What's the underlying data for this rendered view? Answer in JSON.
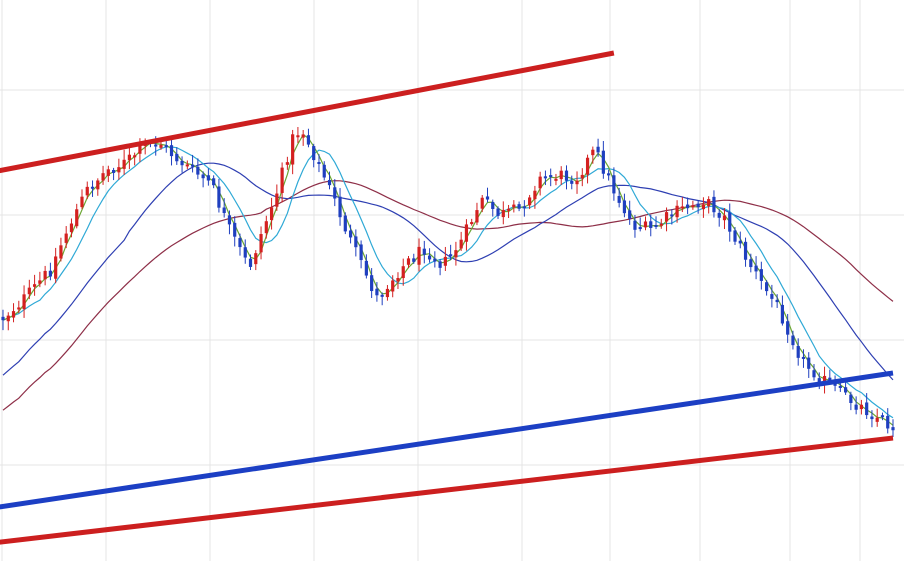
{
  "chart_data": {
    "type": "candlestick",
    "title": "",
    "xlabel": "",
    "ylabel": "",
    "grid": true,
    "legend": "none",
    "axes_visible": false,
    "candle_count": 170,
    "colors": {
      "up_candle": "#d42020",
      "down_candle": "#1f3fbf",
      "trend_channel_upper": "#cc1f1f",
      "trend_channel_lower": "#cc1f1f",
      "trend_line_mid": "#1c3fc4",
      "ma_fastest": "#6aa632",
      "ma_fast": "#2fa9d6",
      "ma_medium": "#2e3fb2",
      "ma_slow": "#8e2f48",
      "grid": "#e4e4e4"
    },
    "price_path": [
      [
        0,
        318
      ],
      [
        5,
        296
      ],
      [
        10,
        270
      ],
      [
        14,
        225
      ],
      [
        18,
        188
      ],
      [
        22,
        170
      ],
      [
        26,
        162
      ],
      [
        30,
        145
      ],
      [
        33,
        142
      ],
      [
        37,
        160
      ],
      [
        40,
        170
      ],
      [
        44,
        185
      ],
      [
        48,
        232
      ],
      [
        52,
        268
      ],
      [
        55,
        228
      ],
      [
        58,
        190
      ],
      [
        61,
        140
      ],
      [
        63,
        128
      ],
      [
        67,
        168
      ],
      [
        70,
        200
      ],
      [
        74,
        248
      ],
      [
        79,
        298
      ],
      [
        84,
        268
      ],
      [
        89,
        248
      ],
      [
        93,
        265
      ],
      [
        97,
        240
      ],
      [
        101,
        200
      ],
      [
        105,
        215
      ],
      [
        109,
        210
      ],
      [
        113,
        180
      ],
      [
        117,
        175
      ],
      [
        121,
        178
      ],
      [
        125,
        150
      ],
      [
        129,
        190
      ],
      [
        133,
        225
      ],
      [
        137,
        230
      ],
      [
        141,
        215
      ],
      [
        144,
        208
      ],
      [
        148,
        200
      ],
      [
        152,
        215
      ],
      [
        156,
        250
      ],
      [
        160,
        282
      ],
      [
        164,
        310
      ],
      [
        169,
        362
      ],
      [
        174,
        383
      ],
      [
        179,
        400
      ],
      [
        184,
        415
      ],
      [
        188,
        428
      ]
    ],
    "trend_lines": [
      {
        "name": "upper",
        "from": [
          -2,
          172
        ],
        "to": [
          116,
          53
        ]
      },
      {
        "name": "mid",
        "from": [
          -2,
          508
        ],
        "to": [
          169,
          373
        ]
      },
      {
        "name": "lower",
        "from": [
          -2,
          543
        ],
        "to": [
          169,
          438
        ]
      }
    ],
    "moving_averages": [
      {
        "name": "ma_fastest",
        "window": 3
      },
      {
        "name": "ma_fast",
        "window": 8
      },
      {
        "name": "ma_medium",
        "window": 24
      },
      {
        "name": "ma_slow",
        "window": 50
      }
    ]
  }
}
